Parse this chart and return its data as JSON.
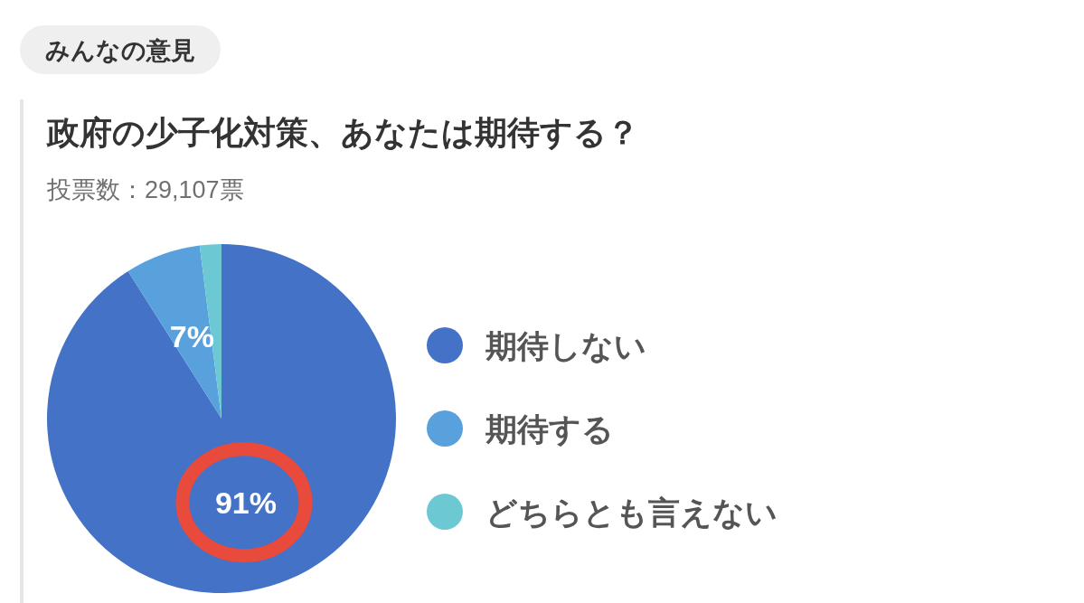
{
  "chart_data": {
    "type": "pie",
    "title": "政府の少子化対策、あなたは期待する？",
    "subtitle": "投票数：29,107票",
    "annotations": [
      "みんなの意見"
    ],
    "categories": [
      "期待しない",
      "期待する",
      "どちらとも言えない"
    ],
    "values": [
      91,
      7,
      2
    ],
    "colors": [
      "#4472c6",
      "#58a1dc",
      "#6cc9d4"
    ],
    "value_labels": [
      "91%",
      "7%",
      null
    ],
    "legend": "right"
  }
}
